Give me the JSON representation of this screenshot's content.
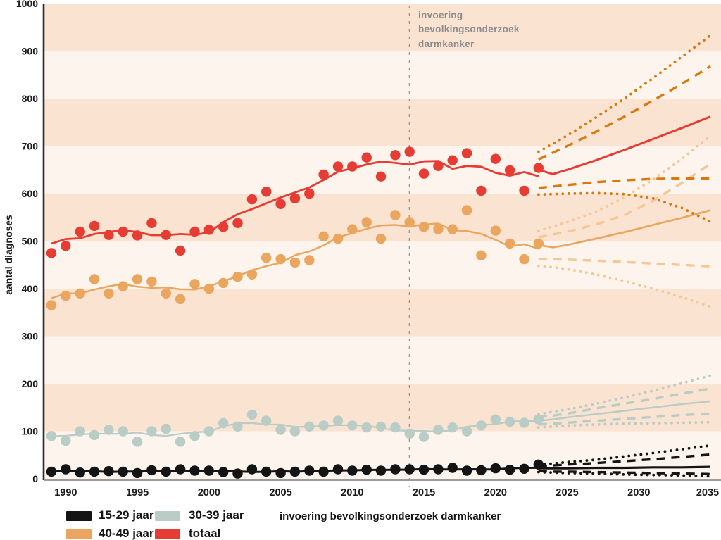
{
  "annotation": {
    "lines": [
      "invoering",
      "bevolkingsonderzoek",
      "darmkanker"
    ]
  },
  "legend": {
    "items": [
      {
        "label": "15-29 jaar",
        "color": "#141414"
      },
      {
        "label": "30-39 jaar",
        "color": "#b9cdc6"
      },
      {
        "label": "40-49 jaar",
        "color": "#eaa55e"
      },
      {
        "label": "totaal",
        "color": "#e73c33"
      }
    ],
    "note": "invoering bevolkingsonderzoek darmkanker"
  },
  "chart_data": {
    "type": "line",
    "title": "",
    "xlabel": "",
    "ylabel": "aantal diagnoses",
    "xlim": [
      1989,
      2035
    ],
    "ylim": [
      0,
      1000
    ],
    "y_ticks": [
      0,
      100,
      200,
      300,
      400,
      500,
      600,
      700,
      800,
      900,
      1000
    ],
    "x_ticks": [
      1990,
      1995,
      2000,
      2005,
      2010,
      2015,
      2020,
      2025,
      2030,
      2035
    ],
    "grid_bands": {
      "dark": [
        [
          100,
          200
        ],
        [
          300,
          400
        ],
        [
          500,
          600
        ],
        [
          700,
          800
        ],
        [
          900,
          1000
        ]
      ],
      "dark_color": "#fae3d1",
      "light_color": "#fdf5ed"
    },
    "vline": {
      "year": 2014,
      "label": "invoering bevolkingsonderzoek darmkanker",
      "color": "#9a9a9a"
    },
    "years_observed": [
      1989,
      1990,
      1991,
      1992,
      1993,
      1994,
      1995,
      1996,
      1997,
      1998,
      1999,
      2000,
      2001,
      2002,
      2003,
      2004,
      2005,
      2006,
      2007,
      2008,
      2009,
      2010,
      2011,
      2012,
      2013,
      2014,
      2015,
      2016,
      2017,
      2018,
      2019,
      2020,
      2021,
      2022,
      2023
    ],
    "projection_years": [
      2023,
      2024,
      2025,
      2027,
      2029,
      2031,
      2033,
      2035
    ],
    "series": [
      {
        "name": "15-29 jaar",
        "color": "#141414",
        "ci_color": "#141414",
        "line_width": 3,
        "dots": [
          15,
          20,
          13,
          15,
          16,
          15,
          12,
          18,
          15,
          20,
          17,
          17,
          14,
          11,
          20,
          15,
          12,
          15,
          17,
          15,
          20,
          17,
          19,
          17,
          20,
          20,
          19,
          20,
          23,
          17,
          18,
          22,
          19,
          21,
          30
        ],
        "projection": {
          "central": [
            22,
            22,
            22,
            23,
            23,
            24,
            24,
            25
          ],
          "upper80": [
            27,
            28,
            30,
            33,
            37,
            41,
            46,
            51
          ],
          "lower80": [
            16,
            15,
            15,
            14,
            13,
            12,
            11,
            10
          ],
          "upper95": [
            30,
            32,
            35,
            40,
            47,
            54,
            62,
            70
          ],
          "lower95": [
            14,
            13,
            12,
            11,
            9,
            8,
            7,
            5
          ]
        }
      },
      {
        "name": "30-39 jaar",
        "color": "#b9cdc6",
        "ci_color": "#b9cdc6",
        "line_width": 2.3,
        "dots": [
          90,
          80,
          100,
          92,
          103,
          100,
          78,
          100,
          105,
          78,
          90,
          100,
          117,
          110,
          135,
          122,
          103,
          100,
          110,
          112,
          122,
          112,
          108,
          110,
          108,
          95,
          88,
          103,
          108,
          100,
          112,
          125,
          120,
          118,
          125
        ],
        "projection": {
          "central": [
            122,
            125,
            129,
            136,
            143,
            150,
            157,
            163
          ],
          "upper80": [
            130,
            133,
            137,
            148,
            158,
            168,
            179,
            190
          ],
          "lower80": [
            114,
            116,
            118,
            122,
            126,
            130,
            134,
            137
          ],
          "upper95": [
            136,
            141,
            146,
            158,
            171,
            185,
            201,
            217
          ],
          "lower95": [
            108,
            110,
            112,
            114,
            116,
            117,
            118,
            119
          ]
        }
      },
      {
        "name": "40-49 jaar",
        "color": "#eaa55e",
        "ci_color": "#f4c795",
        "line_width": 2.5,
        "dots": [
          365,
          385,
          390,
          420,
          390,
          405,
          420,
          415,
          390,
          378,
          410,
          400,
          412,
          425,
          430,
          465,
          462,
          455,
          460,
          510,
          505,
          525,
          540,
          505,
          555,
          540,
          530,
          525,
          525,
          565,
          470,
          522,
          495,
          462,
          495
        ],
        "projection": {
          "central": [
            492,
            487,
            492,
            505,
            519,
            534,
            549,
            565
          ],
          "upper80": [
            508,
            514,
            520,
            535,
            555,
            585,
            622,
            663
          ],
          "lower80": [
            462,
            462,
            461,
            459,
            456,
            453,
            450,
            447
          ],
          "upper95": [
            522,
            531,
            540,
            562,
            592,
            630,
            673,
            722
          ],
          "lower95": [
            448,
            445,
            441,
            430,
            416,
            400,
            382,
            362
          ]
        }
      },
      {
        "name": "totaal",
        "color": "#e73c33",
        "ci_color": "#d9790f",
        "line_width": 2.8,
        "dots": [
          475,
          490,
          520,
          532,
          513,
          520,
          512,
          538,
          513,
          480,
          520,
          524,
          530,
          538,
          588,
          604,
          578,
          590,
          600,
          640,
          657,
          657,
          676,
          636,
          681,
          688,
          642,
          658,
          670,
          685,
          606,
          673,
          649,
          606,
          654
        ],
        "projection": {
          "central": [
            650,
            641,
            650,
            670,
            692,
            715,
            738,
            762
          ],
          "upper80": [
            672,
            686,
            700,
            730,
            762,
            796,
            831,
            868
          ],
          "lower80": [
            612,
            615,
            618,
            624,
            628,
            631,
            632,
            632
          ],
          "upper95": [
            688,
            705,
            722,
            760,
            800,
            843,
            888,
            933
          ],
          "lower95": [
            598,
            599,
            600,
            601,
            599,
            590,
            570,
            541
          ]
        }
      }
    ]
  }
}
